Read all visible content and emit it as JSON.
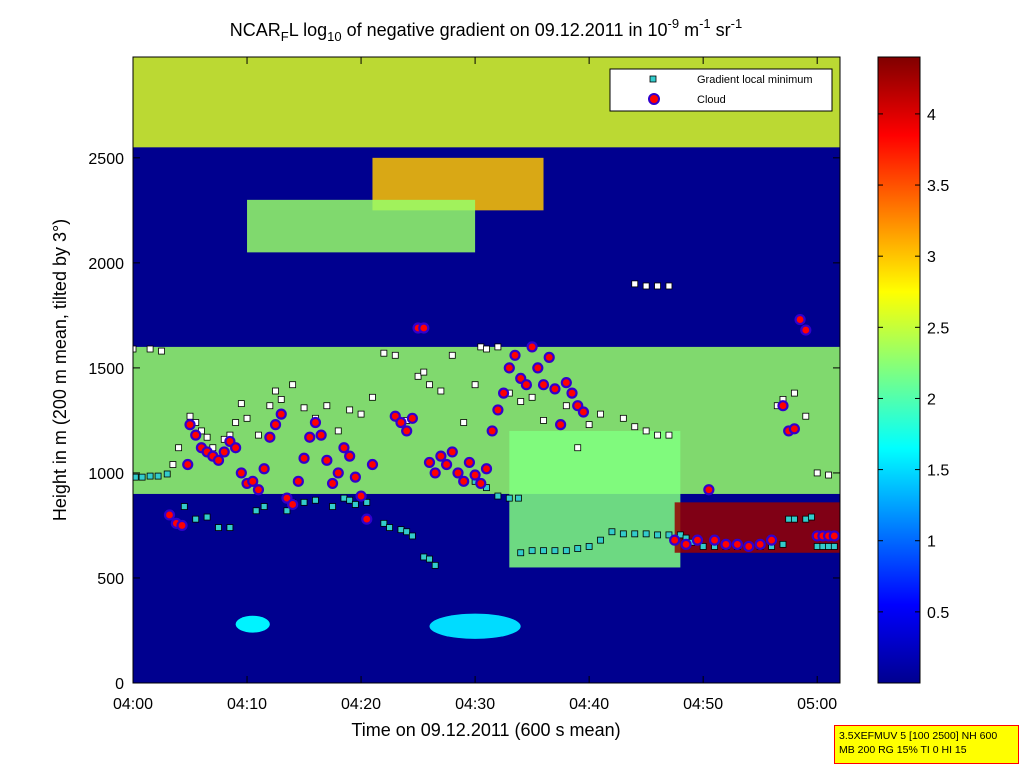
{
  "chart_data": {
    "type": "heatmap",
    "title": {
      "prefix": "NCAR",
      "sub_f": "F",
      "after_f": "L log",
      "sub_10": "10",
      "middle": " of negative gradient on 09.12.2011 in 10",
      "sup_exp": "-9",
      "unit_m": " m",
      "sup_m": "-1",
      "unit_sr": " sr",
      "sup_sr": "-1"
    },
    "xlabel": "Time on 09.12.2011 (600 s mean)",
    "ylabel": "Height in m (200 m mean, tilted by 3°)",
    "x_range_minutes": [
      0,
      62
    ],
    "x_ticks": [
      {
        "min": 0,
        "label": "04:00"
      },
      {
        "min": 10,
        "label": "04:10"
      },
      {
        "min": 20,
        "label": "04:20"
      },
      {
        "min": 30,
        "label": "04:30"
      },
      {
        "min": 40,
        "label": "04:40"
      },
      {
        "min": 50,
        "label": "04:50"
      },
      {
        "min": 60,
        "label": "05:00"
      }
    ],
    "y_range": [
      0,
      2980
    ],
    "y_ticks": [
      0,
      500,
      1000,
      1500,
      2000,
      2500
    ],
    "colorbar": {
      "range": [
        0,
        4.4
      ],
      "ticks": [
        "0.5",
        "1",
        "1.5",
        "2",
        "2.5",
        "3",
        "3.5",
        "4"
      ],
      "colormap": "jet"
    },
    "legend": {
      "position": "top-right",
      "entries": [
        {
          "label": "Gradient local minimum",
          "marker": "square",
          "color": "#33cccc"
        },
        {
          "label": "Cloud",
          "marker": "circle",
          "color": "#ff0000",
          "edge": "#0000cc"
        }
      ]
    },
    "series": [
      {
        "name": "Gradient local minimum (low, cyan)",
        "points": [
          [
            0.2,
            980
          ],
          [
            0.8,
            980
          ],
          [
            1.5,
            985
          ],
          [
            2.2,
            985
          ],
          [
            3,
            995
          ],
          [
            4.5,
            840
          ],
          [
            5.5,
            780
          ],
          [
            6.5,
            790
          ],
          [
            7.5,
            740
          ],
          [
            8.5,
            740
          ],
          [
            10.8,
            820
          ],
          [
            11.5,
            840
          ],
          [
            13.5,
            820
          ],
          [
            14,
            860
          ],
          [
            15,
            860
          ],
          [
            16,
            870
          ],
          [
            17.5,
            840
          ],
          [
            18.5,
            880
          ],
          [
            19,
            870
          ],
          [
            19.5,
            850
          ],
          [
            20.5,
            860
          ],
          [
            22,
            760
          ],
          [
            22.5,
            740
          ],
          [
            23.5,
            730
          ],
          [
            24,
            720
          ],
          [
            24.5,
            700
          ],
          [
            25.5,
            600
          ],
          [
            26,
            590
          ],
          [
            26.5,
            560
          ],
          [
            30,
            960
          ],
          [
            31,
            930
          ],
          [
            32,
            890
          ],
          [
            33,
            880
          ],
          [
            33.8,
            880
          ],
          [
            34,
            620
          ],
          [
            35,
            630
          ],
          [
            36,
            630
          ],
          [
            37,
            630
          ],
          [
            38,
            630
          ],
          [
            39,
            640
          ],
          [
            40,
            650
          ],
          [
            41,
            680
          ],
          [
            42,
            720
          ],
          [
            43,
            710
          ],
          [
            44,
            710
          ],
          [
            45,
            710
          ],
          [
            46,
            705
          ],
          [
            47,
            705
          ],
          [
            48,
            705
          ],
          [
            48.5,
            690
          ],
          [
            49,
            670
          ],
          [
            50,
            650
          ],
          [
            51,
            650
          ],
          [
            52,
            650
          ],
          [
            53,
            650
          ],
          [
            54,
            650
          ],
          [
            55,
            650
          ],
          [
            56,
            650
          ],
          [
            57,
            660
          ],
          [
            57.5,
            780
          ],
          [
            58,
            780
          ],
          [
            59,
            780
          ],
          [
            59.5,
            790
          ],
          [
            60,
            650
          ],
          [
            60.5,
            650
          ],
          [
            61,
            650
          ],
          [
            61.5,
            650
          ]
        ]
      },
      {
        "name": "Gradient local minimum (upper, white)",
        "points": [
          [
            0,
            1590
          ],
          [
            1.5,
            1590
          ],
          [
            2.5,
            1580
          ],
          [
            3.5,
            1040
          ],
          [
            4,
            1120
          ],
          [
            5,
            1270
          ],
          [
            5.5,
            1240
          ],
          [
            6,
            1200
          ],
          [
            6.5,
            1170
          ],
          [
            7,
            1120
          ],
          [
            8,
            1160
          ],
          [
            8.5,
            1180
          ],
          [
            9,
            1240
          ],
          [
            9.5,
            1330
          ],
          [
            10,
            1260
          ],
          [
            11,
            1180
          ],
          [
            12,
            1320
          ],
          [
            12.5,
            1390
          ],
          [
            13,
            1350
          ],
          [
            14,
            1420
          ],
          [
            15,
            1310
          ],
          [
            16,
            1260
          ],
          [
            17,
            1320
          ],
          [
            18,
            1200
          ],
          [
            19,
            1300
          ],
          [
            20,
            1280
          ],
          [
            21,
            1360
          ],
          [
            22,
            1570
          ],
          [
            23,
            1560
          ],
          [
            24,
            1250
          ],
          [
            25,
            1460
          ],
          [
            25.5,
            1480
          ],
          [
            26,
            1420
          ],
          [
            27,
            1390
          ],
          [
            28,
            1560
          ],
          [
            29,
            1240
          ],
          [
            30,
            1420
          ],
          [
            30.5,
            1600
          ],
          [
            31,
            1590
          ],
          [
            32,
            1600
          ],
          [
            33,
            1380
          ],
          [
            34,
            1340
          ],
          [
            35,
            1360
          ],
          [
            36,
            1250
          ],
          [
            38,
            1320
          ],
          [
            39,
            1120
          ],
          [
            40,
            1230
          ],
          [
            41,
            1280
          ],
          [
            43,
            1260
          ],
          [
            44,
            1220
          ],
          [
            45,
            1200
          ],
          [
            46,
            1180
          ],
          [
            47,
            1180
          ],
          [
            44,
            1900
          ],
          [
            45,
            1890
          ],
          [
            46,
            1890
          ],
          [
            47,
            1890
          ],
          [
            56.5,
            1320
          ],
          [
            57,
            1350
          ],
          [
            58,
            1380
          ],
          [
            59,
            1270
          ],
          [
            60,
            1000
          ],
          [
            61,
            990
          ]
        ]
      },
      {
        "name": "Cloud",
        "points": [
          [
            3.2,
            800
          ],
          [
            3.8,
            760
          ],
          [
            4.3,
            750
          ],
          [
            4.8,
            1040
          ],
          [
            5,
            1230
          ],
          [
            5.5,
            1180
          ],
          [
            6,
            1120
          ],
          [
            6.5,
            1100
          ],
          [
            7,
            1080
          ],
          [
            7.5,
            1060
          ],
          [
            8,
            1100
          ],
          [
            8.5,
            1150
          ],
          [
            9,
            1120
          ],
          [
            9.5,
            1000
          ],
          [
            10,
            950
          ],
          [
            10.5,
            960
          ],
          [
            11,
            920
          ],
          [
            11.5,
            1020
          ],
          [
            12,
            1170
          ],
          [
            12.5,
            1230
          ],
          [
            13,
            1280
          ],
          [
            13.5,
            880
          ],
          [
            14,
            850
          ],
          [
            14.5,
            960
          ],
          [
            15,
            1070
          ],
          [
            15.5,
            1170
          ],
          [
            16,
            1240
          ],
          [
            16.5,
            1180
          ],
          [
            17,
            1060
          ],
          [
            17.5,
            950
          ],
          [
            18,
            1000
          ],
          [
            18.5,
            1120
          ],
          [
            19,
            1080
          ],
          [
            19.5,
            980
          ],
          [
            20,
            890
          ],
          [
            20.5,
            780
          ],
          [
            21,
            1040
          ],
          [
            23,
            1270
          ],
          [
            23.5,
            1240
          ],
          [
            24,
            1200
          ],
          [
            24.5,
            1260
          ],
          [
            25,
            1690
          ],
          [
            25.5,
            1690
          ],
          [
            26,
            1050
          ],
          [
            26.5,
            1000
          ],
          [
            27,
            1080
          ],
          [
            27.5,
            1040
          ],
          [
            28,
            1100
          ],
          [
            28.5,
            1000
          ],
          [
            29,
            960
          ],
          [
            29.5,
            1050
          ],
          [
            30,
            990
          ],
          [
            30.5,
            950
          ],
          [
            31,
            1020
          ],
          [
            31.5,
            1200
          ],
          [
            32,
            1300
          ],
          [
            32.5,
            1380
          ],
          [
            33,
            1500
          ],
          [
            33.5,
            1560
          ],
          [
            34,
            1450
          ],
          [
            34.5,
            1420
          ],
          [
            35,
            1600
          ],
          [
            35.5,
            1500
          ],
          [
            36,
            1420
          ],
          [
            36.5,
            1550
          ],
          [
            37,
            1400
          ],
          [
            37.5,
            1230
          ],
          [
            38,
            1430
          ],
          [
            38.5,
            1380
          ],
          [
            39,
            1320
          ],
          [
            39.5,
            1290
          ],
          [
            50.5,
            920
          ],
          [
            47.5,
            680
          ],
          [
            48.5,
            660
          ],
          [
            49.5,
            680
          ],
          [
            51,
            680
          ],
          [
            52,
            660
          ],
          [
            53,
            660
          ],
          [
            54,
            650
          ],
          [
            55,
            660
          ],
          [
            56,
            680
          ],
          [
            57,
            1320
          ],
          [
            57.5,
            1200
          ],
          [
            58,
            1210
          ],
          [
            58.5,
            1730
          ],
          [
            59,
            1680
          ],
          [
            60,
            700
          ],
          [
            60.5,
            700
          ],
          [
            61,
            700
          ],
          [
            61.5,
            700
          ]
        ]
      }
    ],
    "background_features": [
      {
        "kind": "layer",
        "x": [
          0,
          62
        ],
        "y": [
          2550,
          2980
        ],
        "value": 2.6
      },
      {
        "kind": "layer",
        "x": [
          21,
          36
        ],
        "y": [
          2250,
          2500
        ],
        "value": 3.0
      },
      {
        "kind": "layer",
        "x": [
          10,
          30
        ],
        "y": [
          2050,
          2300
        ],
        "value": 2.3
      },
      {
        "kind": "layer",
        "x": [
          0,
          62
        ],
        "y": [
          900,
          1600
        ],
        "value": 2.3
      },
      {
        "kind": "layer",
        "x": [
          33,
          48
        ],
        "y": [
          550,
          1200
        ],
        "value": 2.2
      },
      {
        "kind": "layer",
        "x": [
          47.5,
          62
        ],
        "y": [
          620,
          860
        ],
        "value": 4.3
      },
      {
        "kind": "blob",
        "x": [
          9,
          12
        ],
        "y": [
          240,
          320
        ],
        "value": 1.6
      },
      {
        "kind": "blob",
        "x": [
          26,
          34
        ],
        "y": [
          210,
          330
        ],
        "value": 1.5
      }
    ]
  },
  "info_box": {
    "line1": "3.5XEFMUV 5 [100 2500] NH 600",
    "line2": "MB 200 RG 15% TI 0 HI 15"
  }
}
